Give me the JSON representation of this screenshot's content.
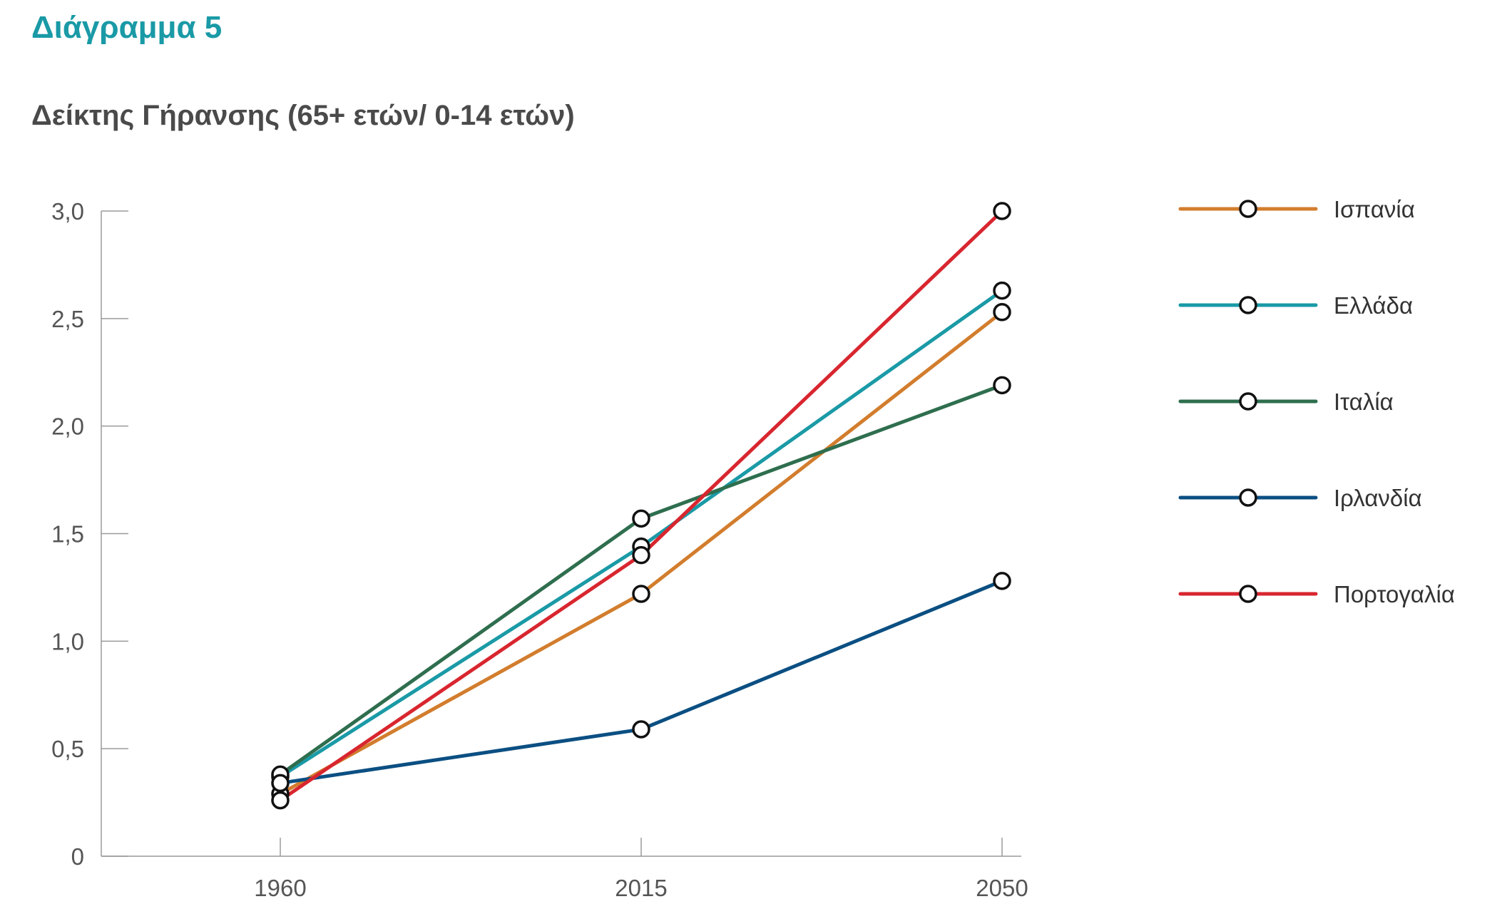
{
  "figure_label": "Διάγραμμα 5",
  "chart_data": {
    "type": "line",
    "title": "Δείκτης Γήρανσης (65+ ετών/ 0-14 ετών)",
    "xlabel": "",
    "ylabel": "",
    "categories": [
      "1960",
      "2015",
      "2050"
    ],
    "ylim": [
      0,
      3.0
    ],
    "yticks": [
      "0",
      "0,5",
      "1,0",
      "1,5",
      "2,0",
      "2,5",
      "3,0"
    ],
    "ytick_values": [
      0,
      0.5,
      1.0,
      1.5,
      2.0,
      2.5,
      3.0
    ],
    "grid": false,
    "legend_position": "right",
    "marker": "open-circle",
    "series": [
      {
        "name": "Ισπανία",
        "color": "#d27d2d",
        "values": [
          0.29,
          1.22,
          2.53
        ]
      },
      {
        "name": "Ελλάδα",
        "color": "#1a9aa6",
        "values": [
          0.37,
          1.44,
          2.63
        ]
      },
      {
        "name": "Ιταλία",
        "color": "#2e6e4e",
        "values": [
          0.38,
          1.57,
          2.19
        ]
      },
      {
        "name": "Ιρλανδία",
        "color": "#0b4f82",
        "values": [
          0.34,
          0.59,
          1.28
        ]
      },
      {
        "name": "Πορτογαλία",
        "color": "#d8262f",
        "values": [
          0.26,
          1.4,
          3.0
        ]
      }
    ]
  }
}
